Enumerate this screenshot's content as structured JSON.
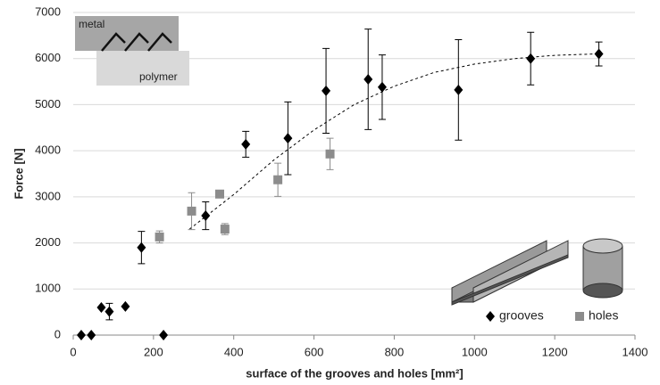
{
  "chart_data": {
    "type": "scatter",
    "xlabel": "surface of the grooves and holes [mm²]",
    "ylabel": "Force [N]",
    "xlim": [
      0,
      1400
    ],
    "ylim": [
      0,
      7000
    ],
    "xticks": [
      0,
      200,
      400,
      600,
      800,
      1000,
      1200,
      1400
    ],
    "yticks": [
      0,
      1000,
      2000,
      3000,
      4000,
      5000,
      6000,
      7000
    ],
    "grid": true,
    "legend": "lower right",
    "annotations": [
      "metal",
      "polymer"
    ],
    "series": [
      {
        "name": "grooves",
        "color": "#000000",
        "marker": "diamond",
        "x": [
          20,
          45,
          70,
          90,
          130,
          170,
          225,
          330,
          430,
          535,
          630,
          735,
          770,
          960,
          1140,
          1310
        ],
        "values": [
          0,
          0,
          600,
          510,
          620,
          1900,
          0,
          2590,
          4140,
          4270,
          5300,
          5550,
          5380,
          5320,
          6000,
          6100
        ],
        "errors": [
          null,
          null,
          null,
          180,
          null,
          350,
          null,
          300,
          280,
          790,
          920,
          1090,
          700,
          1090,
          570,
          260
        ]
      },
      {
        "name": "holes",
        "color": "#8c8c8c",
        "marker": "square",
        "x": [
          215,
          295,
          365,
          378,
          510,
          640
        ],
        "values": [
          2130,
          2690,
          3060,
          2300,
          3370,
          3930
        ],
        "errors": [
          130,
          400,
          null,
          120,
          360,
          340
        ]
      }
    ],
    "trendline": {
      "color": "#000000",
      "x": [
        290,
        400,
        500,
        600,
        700,
        800,
        900,
        1000,
        1100,
        1200,
        1300
      ],
      "values": [
        2300,
        3050,
        3800,
        4450,
        5000,
        5400,
        5700,
        5880,
        6000,
        6070,
        6100
      ]
    }
  }
}
